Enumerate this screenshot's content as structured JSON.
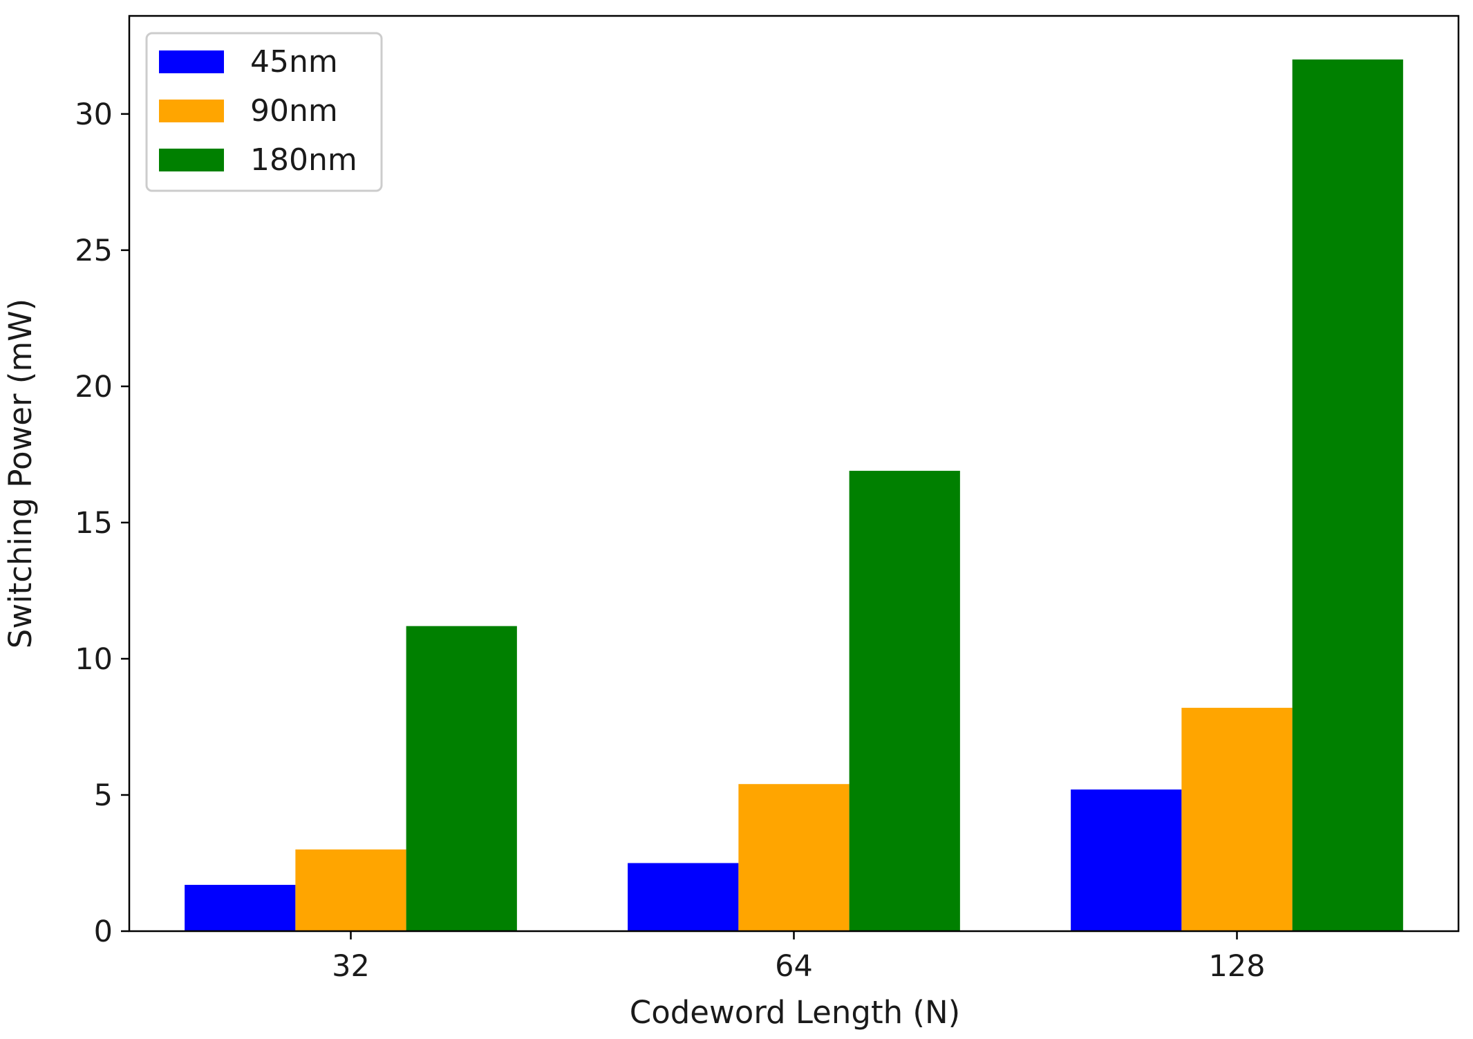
{
  "chart_data": {
    "type": "bar",
    "title": "",
    "xlabel": "Codeword Length (N)",
    "ylabel": "Switching Power (mW)",
    "categories": [
      "32",
      "64",
      "128"
    ],
    "series": [
      {
        "name": "45nm",
        "color": "#0000ff",
        "values": [
          1.7,
          2.5,
          5.2
        ]
      },
      {
        "name": "90nm",
        "color": "#ffa500",
        "values": [
          3.0,
          5.4,
          8.2
        ]
      },
      {
        "name": "180nm",
        "color": "#008000",
        "values": [
          11.2,
          16.9,
          32.0
        ]
      }
    ],
    "ylim": [
      0,
      33.6
    ],
    "yticks": [
      0,
      5,
      10,
      15,
      20,
      25,
      30
    ],
    "grid": false,
    "legend_position": "top-left"
  }
}
